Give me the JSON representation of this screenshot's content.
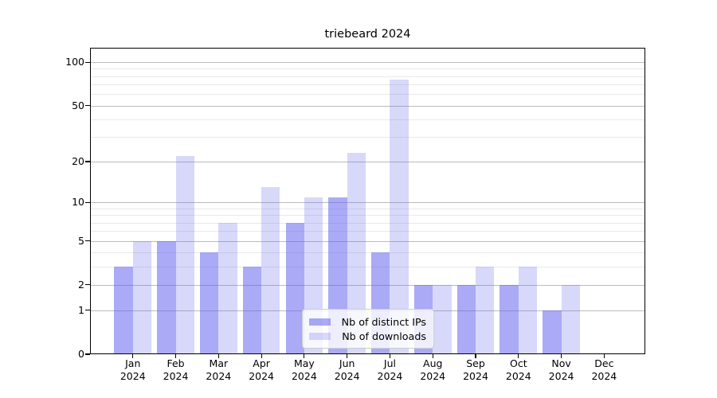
{
  "chart_data": {
    "type": "bar",
    "title": "triebeard 2024",
    "y_scale": "log1p",
    "ylim": [
      0,
      126
    ],
    "categories": [
      "Jan",
      "Feb",
      "Mar",
      "Apr",
      "May",
      "Jun",
      "Jul",
      "Aug",
      "Sep",
      "Oct",
      "Nov",
      "Dec"
    ],
    "year": "2024",
    "series": [
      {
        "name": "Nb of distinct IPs",
        "values": [
          3,
          5,
          4,
          3,
          7,
          11,
          4,
          2,
          2,
          2,
          1,
          0
        ]
      },
      {
        "name": "Nb of downloads",
        "values": [
          5,
          22,
          7,
          13,
          11,
          23,
          76,
          2,
          3,
          3,
          2,
          0
        ]
      }
    ],
    "yticks": [
      0,
      1,
      2,
      5,
      10,
      20,
      50,
      100
    ],
    "minor_yticks": [
      3,
      4,
      6,
      7,
      8,
      9,
      30,
      40,
      60,
      70,
      80,
      90
    ],
    "legend_position": "bottom-center",
    "grid": "on"
  },
  "colors": {
    "distinct_ips_bar": "rgba(92,92,237,0.52)",
    "downloads_bar": "rgba(92,92,237,0.24)",
    "major_gridline": "#bcbcbc",
    "minor_gridline": "#e9e9e9",
    "axis": "#000000",
    "legend_border": "#cccccc",
    "legend_background": "rgba(255,255,255,0.8)"
  }
}
